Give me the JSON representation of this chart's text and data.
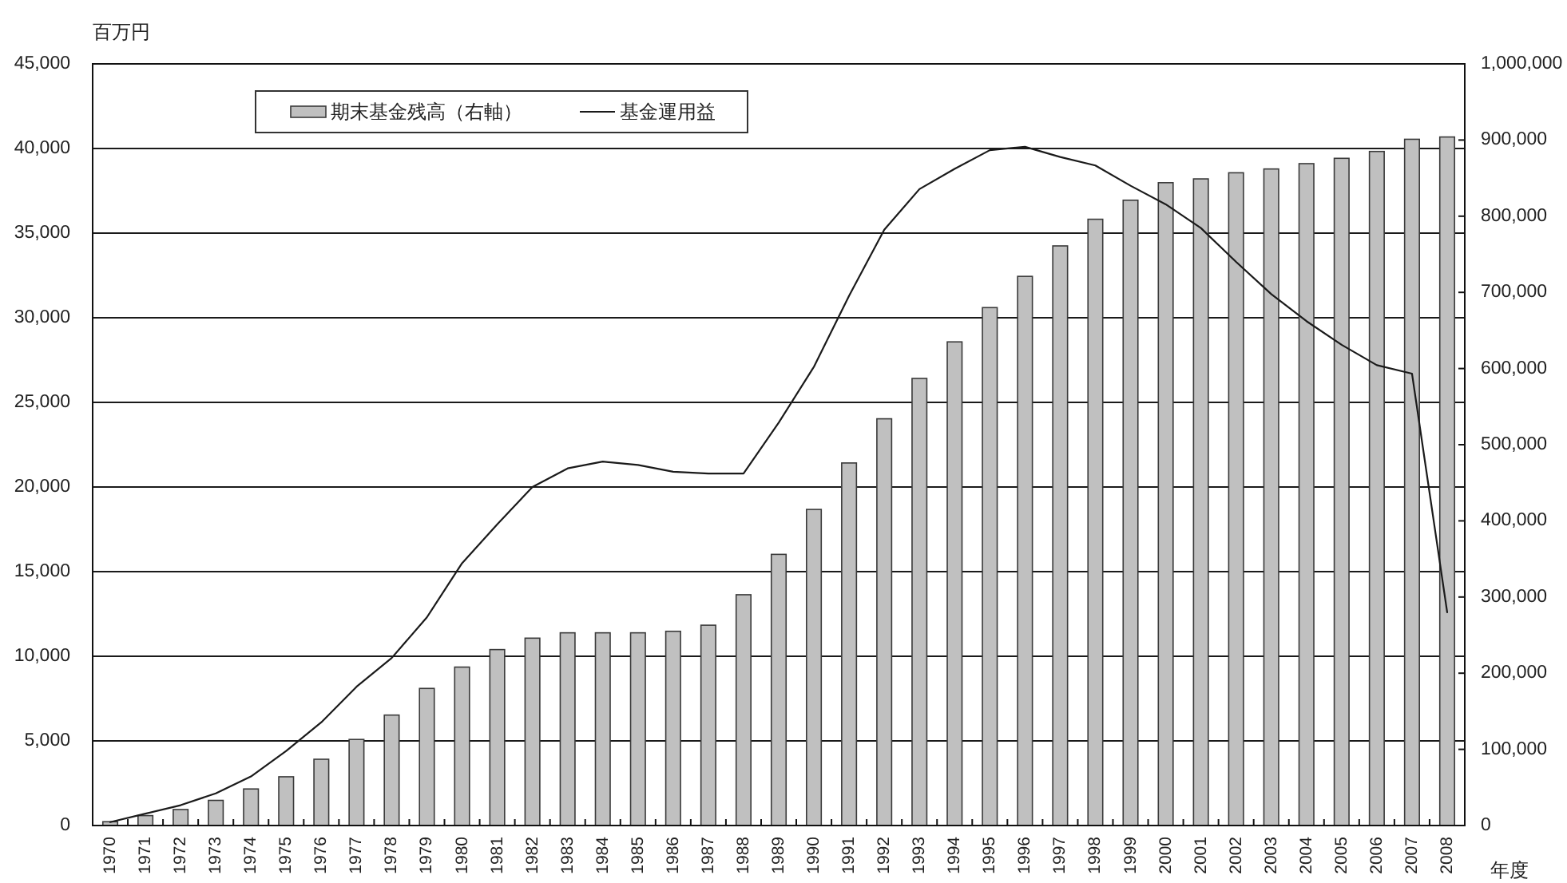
{
  "chart_data": {
    "type": "bar",
    "categories": [
      "1970",
      "1971",
      "1972",
      "1973",
      "1974",
      "1975",
      "1976",
      "1977",
      "1978",
      "1979",
      "1980",
      "1981",
      "1982",
      "1983",
      "1984",
      "1985",
      "1986",
      "1987",
      "1988",
      "1989",
      "1990",
      "1991",
      "1992",
      "1993",
      "1994",
      "1995",
      "1996",
      "1997",
      "1998",
      "1999",
      "2000",
      "2001",
      "2002",
      "2003",
      "2004",
      "2005",
      "2006",
      "2007",
      "2008"
    ],
    "series": [
      {
        "name": "期末基金残高（右軸）",
        "axis": "y2",
        "color": "#c0c0c0",
        "values": [
          5000,
          13000,
          21000,
          33000,
          48000,
          64000,
          87000,
          113000,
          145000,
          180000,
          208000,
          231000,
          246000,
          253000,
          253000,
          253000,
          255000,
          263000,
          303000,
          356000,
          415000,
          476000,
          534000,
          587000,
          635000,
          680000,
          721000,
          761000,
          796000,
          821000,
          844000,
          849000,
          857000,
          862000,
          869000,
          876000,
          885000,
          901000,
          904000
        ]
      },
      {
        "name": "基金運用益",
        "type": "line",
        "color": "#1a1a1a",
        "values": [
          200,
          700,
          1200,
          1900,
          2900,
          4400,
          6100,
          8200,
          9900,
          12300,
          15500,
          17800,
          20000,
          21100,
          21500,
          21300,
          20900,
          20800,
          20800,
          23800,
          27100,
          31300,
          35200,
          37600,
          38800,
          39900,
          40100,
          39500,
          39000,
          37800,
          36700,
          35300,
          33300,
          31400,
          29800,
          28400,
          27200,
          26700,
          12600
        ]
      }
    ],
    "ylabel": "百万円",
    "xlabel": "年度",
    "ylim": [
      0,
      45000
    ],
    "yticks": [
      0,
      {
        "value": 5000,
        "label": "5,000"
      },
      {
        "value": 10000,
        "label": "10,000"
      },
      {
        "value": 15000,
        "label": "15,000"
      },
      {
        "value": 20000,
        "label": "20,000"
      },
      {
        "value": 25000,
        "label": "25,000"
      },
      {
        "value": 30000,
        "label": "30,000"
      },
      {
        "value": 35000,
        "label": "35,000"
      },
      {
        "value": 40000,
        "label": "40,000"
      },
      {
        "value": 45000,
        "label": "45,000"
      }
    ],
    "y2lim": [
      0,
      1000000
    ],
    "y2ticks": [
      0,
      {
        "value": 100000,
        "label": "100,000"
      },
      {
        "value": 200000,
        "label": "200,000"
      },
      {
        "value": 300000,
        "label": "300,000"
      },
      {
        "value": 400000,
        "label": "400,000"
      },
      {
        "value": 500000,
        "label": "500,000"
      },
      {
        "value": 600000,
        "label": "600,000"
      },
      {
        "value": 700000,
        "label": "700,000"
      },
      {
        "value": 800000,
        "label": "800,000"
      },
      {
        "value": 900000,
        "label": "900,000"
      },
      {
        "value": 1000000,
        "label": "1,000,000"
      }
    ],
    "grid": "y",
    "legend": "top left",
    "line_style": "solid"
  }
}
